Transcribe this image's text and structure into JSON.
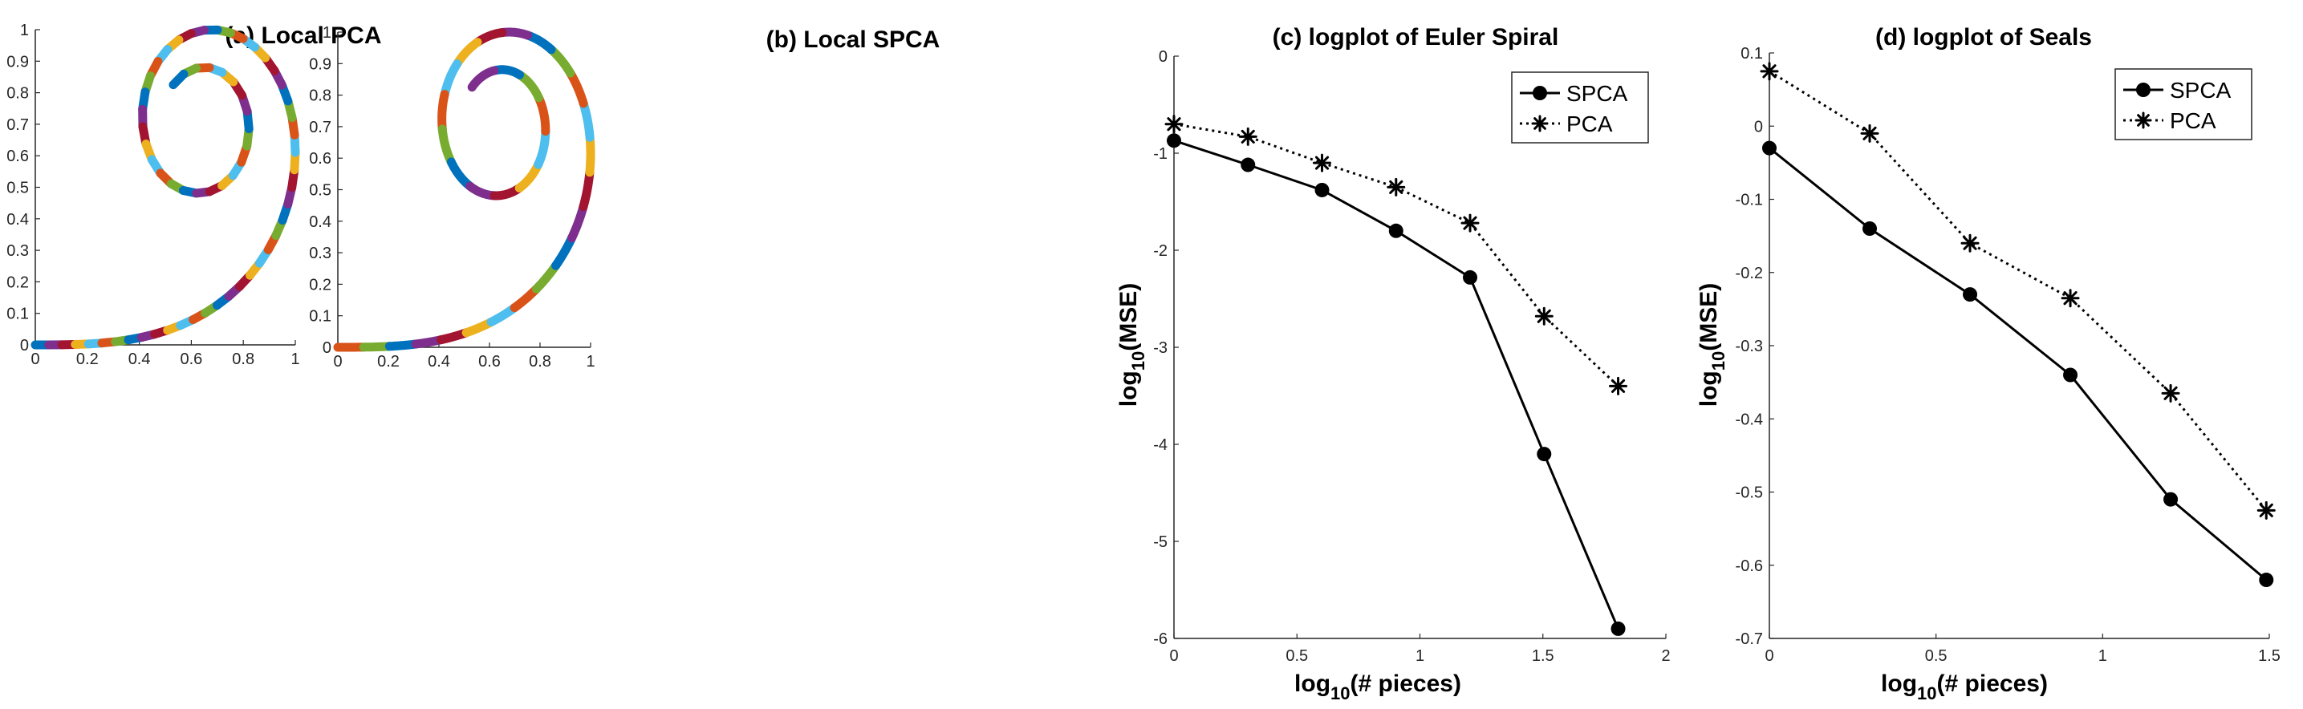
{
  "colors": {
    "blue": "#0072BD",
    "orange": "#D95319",
    "yellow": "#EDB120",
    "purple": "#7E2F8E",
    "green": "#77AC30",
    "light_blue": "#4DBEEE",
    "red": "#A2142F",
    "black": "#000000"
  },
  "chart_data": [
    {
      "panel": "a",
      "type": "scatter",
      "title": "(a) Local PCA",
      "xlabel": "",
      "ylabel": "",
      "xlim": [
        0,
        1
      ],
      "ylim": [
        0,
        1
      ],
      "xticks": [
        "0",
        "0.2",
        "0.4",
        "0.6",
        "0.8",
        "1"
      ],
      "yticks": [
        "0",
        "0.1",
        "0.2",
        "0.3",
        "0.4",
        "0.5",
        "0.6",
        "0.7",
        "0.8",
        "0.9",
        "1"
      ],
      "grid": false,
      "curve": "euler-spiral",
      "pieces": 64,
      "fit": "linear"
    },
    {
      "panel": "b",
      "type": "scatter",
      "title": "(b) Local SPCA",
      "xlabel": "",
      "ylabel": "",
      "xlim": [
        0,
        1
      ],
      "ylim": [
        0,
        1
      ],
      "xticks": [
        "0",
        "0.2",
        "0.4",
        "0.6",
        "0.8",
        "1"
      ],
      "yticks": [
        "0",
        "0.1",
        "0.2",
        "0.3",
        "0.4",
        "0.5",
        "0.6",
        "0.7",
        "0.8",
        "0.9",
        "1"
      ],
      "grid": false,
      "curve": "euler-spiral",
      "pieces": 32,
      "fit": "spherical"
    },
    {
      "panel": "c",
      "type": "line",
      "title": "(c) logplot of Euler Spiral",
      "xlabel": {
        "pre": "log",
        "sub": "10",
        "post": "(# pieces)"
      },
      "ylabel": {
        "pre": "log",
        "sub": "10",
        "post": "(MSE)"
      },
      "xlim": [
        0,
        2
      ],
      "ylim": [
        -6,
        0
      ],
      "xticks": [
        "0",
        "0.5",
        "1",
        "1.5",
        "2"
      ],
      "yticks": [
        "0",
        "-1",
        "-2",
        "-3",
        "-4",
        "-5",
        "-6"
      ],
      "legend_position": "top-right",
      "grid": false,
      "series": [
        {
          "name": "SPCA",
          "style": "solid",
          "marker": "circle",
          "x": [
            0,
            0.301,
            0.602,
            0.903,
            1.204,
            1.505,
            1.806
          ],
          "y": [
            -0.87,
            -1.12,
            -1.38,
            -1.8,
            -2.28,
            -4.1,
            -5.9
          ]
        },
        {
          "name": "PCA",
          "style": "dotted",
          "marker": "asterisk",
          "x": [
            0,
            0.301,
            0.602,
            0.903,
            1.204,
            1.505,
            1.806
          ],
          "y": [
            -0.7,
            -0.83,
            -1.1,
            -1.35,
            -1.72,
            -2.68,
            -3.4
          ]
        }
      ]
    },
    {
      "panel": "d",
      "type": "line",
      "title": "(d) logplot of Seals",
      "xlabel": {
        "pre": "log",
        "sub": "10",
        "post": "(# pieces)"
      },
      "ylabel": {
        "pre": "log",
        "sub": "10",
        "post": "(MSE)"
      },
      "xlim": [
        0,
        1.5
      ],
      "ylim": [
        -0.7,
        0.1
      ],
      "xticks": [
        "0",
        "0.5",
        "1",
        "1.5"
      ],
      "yticks": [
        "0.1",
        "0",
        "-0.1",
        "-0.2",
        "-0.3",
        "-0.4",
        "-0.5",
        "-0.6",
        "-0.7"
      ],
      "legend_position": "top-right",
      "grid": false,
      "series": [
        {
          "name": "SPCA",
          "style": "solid",
          "marker": "circle",
          "x": [
            0,
            0.301,
            0.602,
            0.903,
            1.204,
            1.491
          ],
          "y": [
            -0.03,
            -0.14,
            -0.23,
            -0.34,
            -0.51,
            -0.62
          ]
        },
        {
          "name": "PCA",
          "style": "dotted",
          "marker": "asterisk",
          "x": [
            0,
            0.301,
            0.602,
            0.903,
            1.204,
            1.491
          ],
          "y": [
            0.075,
            -0.01,
            -0.16,
            -0.235,
            -0.365,
            -0.525
          ]
        }
      ]
    }
  ]
}
